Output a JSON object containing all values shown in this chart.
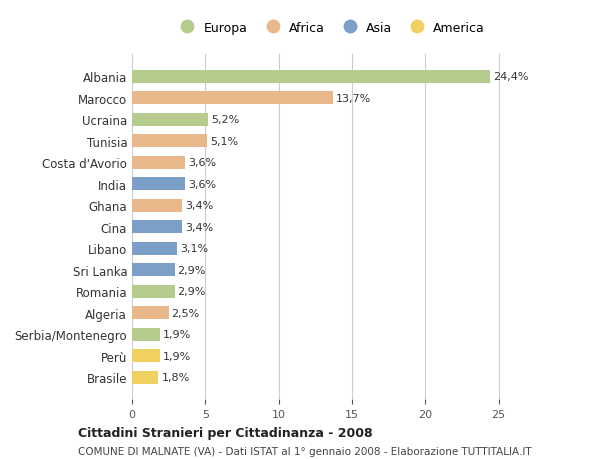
{
  "countries": [
    "Albania",
    "Marocco",
    "Ucraina",
    "Tunisia",
    "Costa d'Avorio",
    "India",
    "Ghana",
    "Cina",
    "Libano",
    "Sri Lanka",
    "Romania",
    "Algeria",
    "Serbia/Montenegro",
    "Perù",
    "Brasile"
  ],
  "values": [
    24.4,
    13.7,
    5.2,
    5.1,
    3.6,
    3.6,
    3.4,
    3.4,
    3.1,
    2.9,
    2.9,
    2.5,
    1.9,
    1.9,
    1.8
  ],
  "continents": [
    "Europa",
    "Africa",
    "Europa",
    "Africa",
    "Africa",
    "Asia",
    "Africa",
    "Asia",
    "Asia",
    "Asia",
    "Europa",
    "Africa",
    "Europa",
    "America",
    "America"
  ],
  "colors": {
    "Europa": "#b5cc8e",
    "Africa": "#e8b88a",
    "Asia": "#7b9fc7",
    "America": "#f0d060"
  },
  "legend_order": [
    "Europa",
    "Africa",
    "Asia",
    "America"
  ],
  "xlim": [
    0,
    27
  ],
  "xticks": [
    0,
    5,
    10,
    15,
    20,
    25
  ],
  "title_bold": "Cittadini Stranieri per Cittadinanza - 2008",
  "subtitle": "COMUNE DI MALNATE (VA) - Dati ISTAT al 1° gennaio 2008 - Elaborazione TUTTITALIA.IT",
  "bg_color": "#ffffff",
  "grid_color": "#cccccc",
  "bar_height": 0.6
}
